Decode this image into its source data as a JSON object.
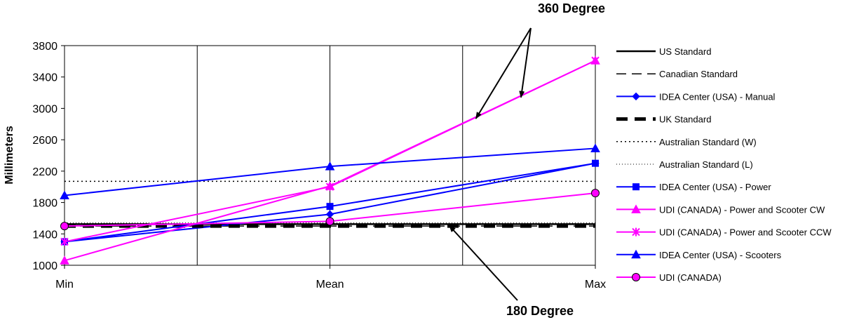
{
  "chart_data": {
    "type": "line",
    "title": "",
    "xlabel": "",
    "ylabel": "Millimeters",
    "categories": [
      "Min",
      "Mean",
      "Max"
    ],
    "ylim": [
      1000,
      3800
    ],
    "yticks": [
      1000,
      1400,
      1800,
      2200,
      2600,
      3000,
      3400,
      3800
    ],
    "grid": {
      "vertical": true,
      "horizontal": false
    },
    "legend_position": "right",
    "series": [
      {
        "name": "US Standard",
        "values": [
          1525,
          1525,
          1525
        ],
        "color": "#000000",
        "dash": "solid",
        "width": 2.5,
        "marker": "none"
      },
      {
        "name": "Canadian Standard",
        "values": [
          1500,
          1500,
          1500
        ],
        "color": "#000000",
        "dash": "long-dash",
        "width": 1.5,
        "marker": "none"
      },
      {
        "name": "IDEA Center (USA) - Manual",
        "values": [
          1300,
          1650,
          2300
        ],
        "color": "#0000ff",
        "dash": "solid",
        "width": 2,
        "marker": "diamond"
      },
      {
        "name": "UK Standard",
        "values": [
          1500,
          1500,
          1500
        ],
        "color": "#000000",
        "dash": "heavy-dash",
        "width": 5,
        "marker": "none"
      },
      {
        "name": "Australian Standard (W)",
        "values": [
          2070,
          2070,
          2070
        ],
        "color": "#000000",
        "dash": "dot",
        "width": 1.5,
        "marker": "none"
      },
      {
        "name": "Australian Standard (L)",
        "values": [
          1540,
          1540,
          1540
        ],
        "color": "#000000",
        "dash": "fine-dot",
        "width": 1,
        "marker": "none"
      },
      {
        "name": "IDEA Center (USA) - Power",
        "values": [
          1300,
          1750,
          2300
        ],
        "color": "#0000ff",
        "dash": "solid",
        "width": 2,
        "marker": "square"
      },
      {
        "name": "UDI (CANADA) - Power and Scooter CW",
        "values": [
          1060,
          2010,
          3610
        ],
        "color": "#ff00ff",
        "dash": "solid",
        "width": 2,
        "marker": "triangle"
      },
      {
        "name": "UDI (CANADA) - Power and Scooter CCW",
        "values": [
          1300,
          2000,
          3610
        ],
        "color": "#ff00ff",
        "dash": "solid",
        "width": 2,
        "marker": "star"
      },
      {
        "name": "IDEA Center (USA) - Scooters",
        "values": [
          1890,
          2260,
          2490
        ],
        "color": "#0000ff",
        "dash": "solid",
        "width": 2,
        "marker": "triangle"
      },
      {
        "name": "UDI (CANADA)",
        "values": [
          1500,
          1560,
          1920
        ],
        "color": "#ff00ff",
        "dash": "solid",
        "width": 2,
        "marker": "circle"
      }
    ],
    "annotations": [
      {
        "text": "360 Degree",
        "targets": [
          {
            "category_pos": 1.55,
            "value": 2870
          },
          {
            "category_pos": 1.72,
            "value": 3140
          }
        ]
      },
      {
        "text": "180 Degree",
        "targets": [
          {
            "category_pos": 1.45,
            "value": 1540
          }
        ]
      }
    ]
  }
}
